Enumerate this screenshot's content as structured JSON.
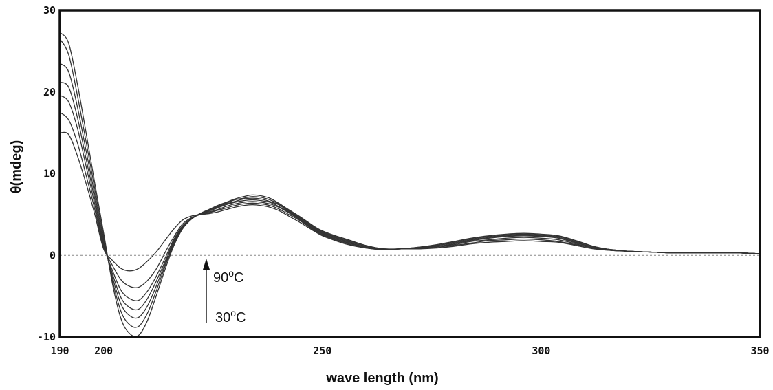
{
  "chart_data": {
    "type": "line",
    "xlabel": "wave length (nm)",
    "ylabel": "θ(mdeg)",
    "xlim": [
      190,
      350
    ],
    "ylim": [
      -10,
      30
    ],
    "xticks": [
      "190",
      "200",
      "250",
      "300",
      "350"
    ],
    "xtick_values": [
      190,
      200,
      250,
      300,
      350
    ],
    "yticks": [
      "30",
      "20",
      "10",
      "0",
      "-10"
    ],
    "ytick_values": [
      30,
      20,
      10,
      0,
      -10
    ],
    "zero_line": "dashed",
    "grid": false,
    "legend": "none",
    "colors": {
      "line": "#333333",
      "axis": "#111111",
      "zero_line": "#888888"
    },
    "annotation": {
      "top_value": "90",
      "top_unit": "C",
      "bottom_value": "30",
      "bottom_unit": "C",
      "degree_symbol": "o",
      "arrow": "up"
    },
    "x_shared": [
      190,
      192,
      194,
      196,
      198,
      200,
      202,
      204,
      206,
      208,
      210,
      212,
      214,
      216,
      218,
      220,
      222,
      224,
      226,
      228,
      230,
      232,
      234,
      236,
      238,
      240,
      242,
      245,
      248,
      250,
      253,
      256,
      260,
      264,
      268,
      272,
      276,
      280,
      284,
      288,
      292,
      296,
      300,
      304,
      308,
      312,
      316,
      320,
      325,
      330,
      335,
      340,
      345,
      350
    ],
    "series": [
      {
        "values": [
          27.3,
          26.0,
          21.0,
          15.0,
          8.8,
          2.8,
          -3.4,
          -7.8,
          -9.6,
          -9.8,
          -8.0,
          -5.0,
          -1.8,
          1.1,
          3.2,
          4.4,
          5.1,
          5.6,
          6.1,
          6.5,
          6.9,
          7.2,
          7.4,
          7.3,
          7.0,
          6.4,
          5.7,
          4.7,
          3.6,
          3.0,
          2.4,
          1.9,
          1.2,
          0.8,
          0.8,
          1.0,
          1.3,
          1.7,
          2.1,
          2.4,
          2.6,
          2.7,
          2.6,
          2.4,
          1.8,
          1.1,
          0.7,
          0.5,
          0.4,
          0.3,
          0.3,
          0.3,
          0.3,
          0.2
        ]
      },
      {
        "values": [
          26.5,
          24.6,
          19.6,
          13.9,
          8.1,
          2.3,
          -3.0,
          -6.9,
          -8.5,
          -8.7,
          -7.1,
          -4.4,
          -1.4,
          1.3,
          3.3,
          4.4,
          5.1,
          5.5,
          6.0,
          6.4,
          6.8,
          7.0,
          7.2,
          7.1,
          6.8,
          6.3,
          5.6,
          4.6,
          3.5,
          2.9,
          2.3,
          1.8,
          1.2,
          0.8,
          0.8,
          1.0,
          1.2,
          1.6,
          2.0,
          2.3,
          2.5,
          2.6,
          2.5,
          2.3,
          1.7,
          1.1,
          0.7,
          0.5,
          0.4,
          0.3,
          0.3,
          0.3,
          0.3,
          0.2
        ]
      },
      {
        "values": [
          23.5,
          22.5,
          18.2,
          12.8,
          7.4,
          1.9,
          -2.6,
          -6.0,
          -7.4,
          -7.6,
          -6.2,
          -3.8,
          -1.1,
          1.5,
          3.4,
          4.5,
          5.1,
          5.5,
          5.9,
          6.3,
          6.6,
          6.9,
          7.0,
          6.9,
          6.6,
          6.2,
          5.5,
          4.5,
          3.4,
          2.8,
          2.2,
          1.7,
          1.1,
          0.8,
          0.8,
          0.9,
          1.2,
          1.5,
          1.9,
          2.2,
          2.4,
          2.5,
          2.4,
          2.2,
          1.6,
          1.0,
          0.7,
          0.5,
          0.4,
          0.3,
          0.3,
          0.3,
          0.3,
          0.2
        ]
      },
      {
        "values": [
          21.2,
          20.6,
          16.9,
          11.8,
          6.8,
          1.5,
          -2.2,
          -5.2,
          -6.4,
          -6.6,
          -5.3,
          -3.2,
          -0.8,
          1.7,
          3.5,
          4.5,
          5.1,
          5.4,
          5.8,
          6.2,
          6.5,
          6.7,
          6.8,
          6.7,
          6.5,
          6.0,
          5.4,
          4.4,
          3.3,
          2.7,
          2.1,
          1.6,
          1.0,
          0.7,
          0.8,
          0.9,
          1.1,
          1.4,
          1.8,
          2.1,
          2.3,
          2.4,
          2.3,
          2.1,
          1.5,
          1.0,
          0.7,
          0.5,
          0.4,
          0.3,
          0.3,
          0.3,
          0.3,
          0.2
        ]
      },
      {
        "values": [
          19.6,
          18.8,
          15.6,
          10.9,
          6.2,
          1.2,
          -1.8,
          -4.3,
          -5.3,
          -5.5,
          -4.4,
          -2.6,
          -0.4,
          1.9,
          3.6,
          4.5,
          5.0,
          5.3,
          5.6,
          6.0,
          6.3,
          6.5,
          6.6,
          6.5,
          6.3,
          5.9,
          5.3,
          4.3,
          3.2,
          2.6,
          2.0,
          1.5,
          1.0,
          0.7,
          0.8,
          0.9,
          1.1,
          1.3,
          1.7,
          1.9,
          2.1,
          2.2,
          2.1,
          1.9,
          1.4,
          0.9,
          0.6,
          0.5,
          0.4,
          0.3,
          0.3,
          0.3,
          0.3,
          0.2
        ]
      },
      {
        "values": [
          17.5,
          16.6,
          13.8,
          9.8,
          5.6,
          1.0,
          -1.2,
          -3.0,
          -3.8,
          -3.9,
          -3.1,
          -1.7,
          0.3,
          2.2,
          3.8,
          4.6,
          5.0,
          5.2,
          5.5,
          5.8,
          6.1,
          6.3,
          6.4,
          6.3,
          6.1,
          5.7,
          5.1,
          4.2,
          3.1,
          2.5,
          1.9,
          1.4,
          0.9,
          0.7,
          0.8,
          0.8,
          1.0,
          1.2,
          1.5,
          1.8,
          1.9,
          2.0,
          1.9,
          1.7,
          1.3,
          0.9,
          0.6,
          0.5,
          0.4,
          0.3,
          0.3,
          0.3,
          0.3,
          0.2
        ]
      },
      {
        "values": [
          15.0,
          14.8,
          12.2,
          8.8,
          5.0,
          0.8,
          -0.6,
          -1.6,
          -1.9,
          -1.6,
          -0.7,
          0.4,
          1.8,
          3.2,
          4.3,
          4.8,
          5.0,
          5.1,
          5.3,
          5.6,
          5.9,
          6.1,
          6.2,
          6.1,
          5.9,
          5.5,
          4.9,
          4.0,
          3.0,
          2.4,
          1.8,
          1.3,
          0.9,
          0.7,
          0.8,
          0.8,
          0.9,
          1.1,
          1.4,
          1.6,
          1.7,
          1.8,
          1.7,
          1.6,
          1.2,
          0.8,
          0.6,
          0.5,
          0.4,
          0.3,
          0.3,
          0.3,
          0.3,
          0.2
        ]
      }
    ]
  }
}
